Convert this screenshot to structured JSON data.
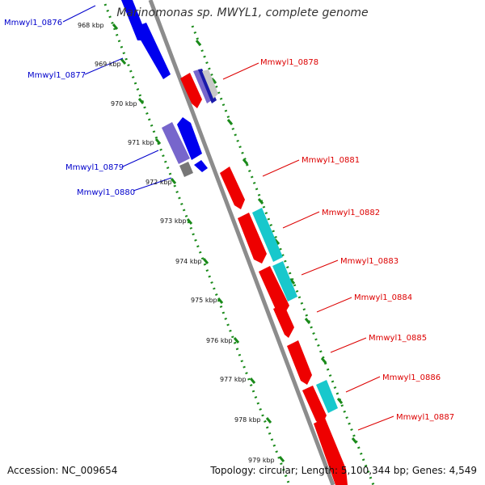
{
  "title": "Marinomonas sp. MWYL1, complete genome",
  "accession": "Accession: NC_009654",
  "summary": "Topology: circular; Length: 5,100,344 bp; Genes: 4,549",
  "colors": {
    "backbone": "#8c8c8c",
    "ruler": "#1a8a1a",
    "forward_gene": "#ee0000",
    "reverse_gene": "#0000ee",
    "cyan_feature": "#18c8cc",
    "purple_feature": "#7766cc",
    "grey_feature": "#777777",
    "forward_label": "#dd0000",
    "reverse_label": "#0000cc"
  },
  "ticks": [
    "968 kbp",
    "969 kbp",
    "970 kbp",
    "971 kbp",
    "972 kbp",
    "973 kbp",
    "974 kbp",
    "975 kbp",
    "976 kbp",
    "977 kbp",
    "978 kbp",
    "979 kbp"
  ],
  "reverse_labels": [
    "Mmwyl1_0876",
    "Mmwyl1_0877",
    "Mmwyl1_0879",
    "Mmwyl1_0880"
  ],
  "forward_labels": [
    "Mmwyl1_0878",
    "Mmwyl1_0881",
    "Mmwyl1_0882",
    "Mmwyl1_0883",
    "Mmwyl1_0884",
    "Mmwyl1_0885",
    "Mmwyl1_0886",
    "Mmwyl1_0887"
  ]
}
